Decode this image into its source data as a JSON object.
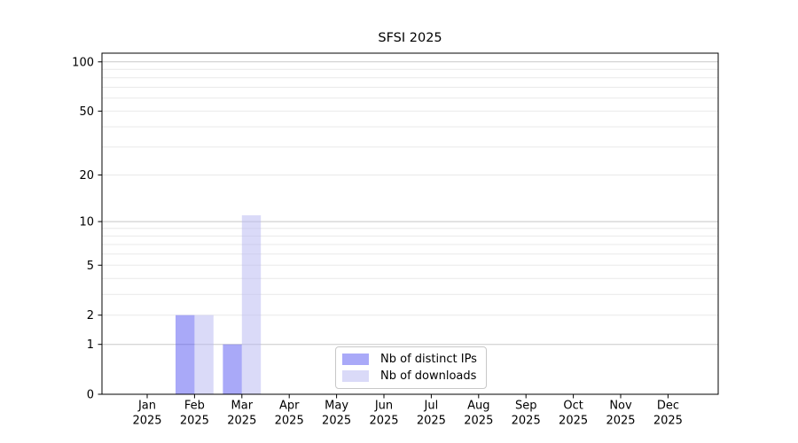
{
  "window": {
    "background": "#ffffff"
  },
  "chart_data": {
    "type": "bar",
    "title": "SFSI 2025",
    "categories": [
      {
        "month": "Jan",
        "year": "2025"
      },
      {
        "month": "Feb",
        "year": "2025"
      },
      {
        "month": "Mar",
        "year": "2025"
      },
      {
        "month": "Apr",
        "year": "2025"
      },
      {
        "month": "May",
        "year": "2025"
      },
      {
        "month": "Jun",
        "year": "2025"
      },
      {
        "month": "Jul",
        "year": "2025"
      },
      {
        "month": "Aug",
        "year": "2025"
      },
      {
        "month": "Sep",
        "year": "2025"
      },
      {
        "month": "Oct",
        "year": "2025"
      },
      {
        "month": "Nov",
        "year": "2025"
      },
      {
        "month": "Dec",
        "year": "2025"
      }
    ],
    "series": [
      {
        "name": "Nb of distinct IPs",
        "color": "rgba(83,83,241,0.5)",
        "values": [
          0,
          2,
          1,
          0,
          0,
          0,
          0,
          0,
          0,
          0,
          0,
          0
        ]
      },
      {
        "name": "Nb of downloads",
        "color": "rgba(181,181,241,0.5)",
        "values": [
          0,
          2,
          11,
          0,
          0,
          0,
          0,
          0,
          0,
          0,
          0,
          0
        ]
      }
    ],
    "xlabel": "",
    "ylabel": "",
    "yscale": "log10(1+y)",
    "ylim": [
      0,
      113
    ],
    "yticks": [
      0,
      1,
      2,
      5,
      10,
      20,
      50,
      100
    ],
    "decade_gridline_values": [
      1,
      10,
      100
    ],
    "minor_gridline_values": [
      3,
      4,
      6,
      7,
      8,
      9,
      30,
      40,
      60,
      70,
      80,
      90
    ],
    "grid": true,
    "legend_position": "lower-center-inside",
    "colors": {
      "axis": "#000000",
      "text": "#000000",
      "grid_decade": "#c8c8c8",
      "grid_light": "#e9e9e9",
      "legend_border": "#c8c8c8",
      "legend_background": "#ffffff"
    }
  }
}
